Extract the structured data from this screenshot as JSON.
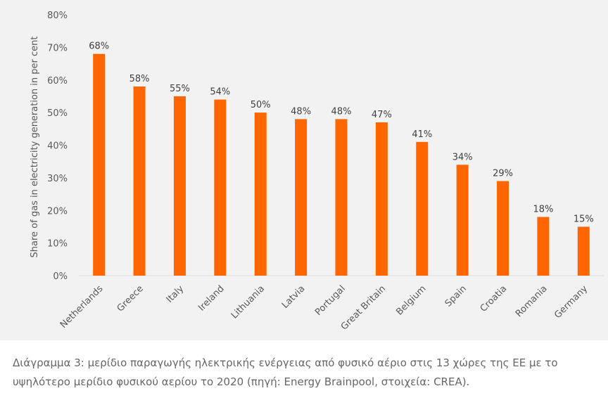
{
  "chart_data": {
    "type": "bar",
    "title": "",
    "xlabel": "",
    "ylabel": "Share of gas in electricity generation in per cent",
    "ylim": [
      0,
      80
    ],
    "yticks": [
      "0%",
      "10%",
      "20%",
      "30%",
      "40%",
      "50%",
      "60%",
      "70%",
      "80%"
    ],
    "categories": [
      "Netherlands",
      "Greece",
      "Italy",
      "Ireland",
      "Lithuania",
      "Latvia",
      "Portugal",
      "Great Britain",
      "Belgium",
      "Spain",
      "Croatia",
      "Romania",
      "Germany"
    ],
    "values": [
      68,
      58,
      55,
      54,
      50,
      48,
      48,
      47,
      41,
      34,
      29,
      18,
      15
    ],
    "data_labels": [
      "68%",
      "58%",
      "55%",
      "54%",
      "50%",
      "48%",
      "48%",
      "47%",
      "41%",
      "34%",
      "29%",
      "18%",
      "15%"
    ],
    "grid": false,
    "bar_color": "#ff6600"
  },
  "caption": "Διάγραμμα 3: μερίδιο παραγωγής ηλεκτρικής ενέργειας από φυσικό αέριο στις 13 χώρες της ΕΕ με το υψηλότερο μερίδιο φυσικού αερίου το 2020 (πηγή: Energy Brainpool, στοιχεία: CREA)."
}
